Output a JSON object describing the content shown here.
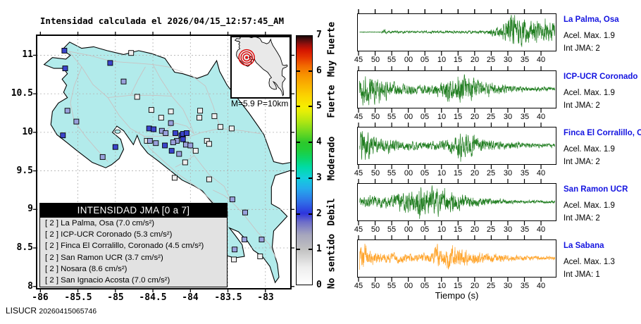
{
  "title": "Intensidad calculada el 2026/04/15_12:57:45_AM",
  "footer": {
    "agency": "LISUCR",
    "code": "20260415065746"
  },
  "map": {
    "x_ticks": [
      "-86",
      "-85.5",
      "-85",
      "-84.5",
      "-84",
      "-83.5",
      "-83"
    ],
    "y_ticks": [
      "11",
      "10.5",
      "10",
      "9.5",
      "9",
      "8.5",
      "8"
    ],
    "inset_label": "M=5.9 P=10km",
    "legend_header": "INTENSIDAD JMA [0 a 7]",
    "legend_entries": [
      {
        "intensity": "2",
        "name": "La Palma, Osa",
        "accel": "7.0",
        "unit": "cm/s²"
      },
      {
        "intensity": "2",
        "name": "ICP-UCR Coronado",
        "accel": "5.3",
        "unit": "cm/s²"
      },
      {
        "intensity": "2",
        "name": "Finca El Corralillo, Coronado",
        "accel": "4.5",
        "unit": "cm/s²"
      },
      {
        "intensity": "2",
        "name": "San Ramon UCR",
        "accel": "3.7",
        "unit": "cm/s²"
      },
      {
        "intensity": "2",
        "name": "Nosara",
        "accel": "8.6",
        "unit": "cm/s²"
      },
      {
        "intensity": "2",
        "name": "San Ignacio Acosta",
        "accel": "7.0",
        "unit": "cm/s²"
      }
    ]
  },
  "colorbar": {
    "tick_labels": [
      "0",
      "1",
      "2",
      "3",
      "4",
      "5",
      "6",
      "7"
    ],
    "category_labels": [
      {
        "text": "No sentido",
        "level": 0.68
      },
      {
        "text": "Debil",
        "level": 2.05
      },
      {
        "text": "Moderado",
        "level": 3.55
      },
      {
        "text": "Fuerte",
        "level": 5.15
      },
      {
        "text": "Muy Fuerte",
        "level": 6.6
      }
    ]
  },
  "waveforms": {
    "time_tick_labels": [
      "45",
      "50",
      "55",
      "00",
      "05",
      "10",
      "15",
      "20",
      "25",
      "30",
      "35",
      "40"
    ],
    "xlabel": "Tiempo (s)",
    "labels": {
      "acel": "Acel. Max.",
      "int": "Int JMA:"
    },
    "stations": [
      {
        "name": "La Palma, Osa",
        "acel_max": "1.9",
        "int_jma": "2",
        "color": "#1f7d1f"
      },
      {
        "name": "ICP-UCR Coronado",
        "acel_max": "1.9",
        "int_jma": "2",
        "color": "#1f7d1f"
      },
      {
        "name": "Finca El Corralillo, Coronado",
        "acel_max": "1.9",
        "int_jma": "2",
        "color": "#1f7d1f"
      },
      {
        "name": "San Ramon UCR",
        "acel_max": "1.9",
        "int_jma": "2",
        "color": "#1f7d1f"
      },
      {
        "name": "La Sabana",
        "acel_max": "1.3",
        "int_jma": "1",
        "color": "#ffa42b"
      }
    ]
  },
  "chart_data": [
    {
      "type": "scatter",
      "title": "Intensidad calculada el 2026/04/15_12:57:45_AM",
      "xlabel": "",
      "ylabel": "",
      "x_ticks": [
        -86,
        -85.5,
        -85,
        -84.5,
        -84,
        -83.5,
        -83
      ],
      "y_ticks": [
        11,
        10.5,
        10,
        9.5,
        9,
        8.5,
        8
      ],
      "xlim": [
        -86.05,
        -82.66
      ],
      "ylim": [
        7.97,
        11.26
      ],
      "grid": true,
      "legend_position": "bottom-left",
      "colorbar": {
        "range": [
          0,
          7
        ],
        "categories": [
          "No sentido",
          "Debil",
          "Moderado",
          "Fuerte",
          "Muy Fuerte"
        ]
      },
      "epicenter": {
        "lon": -85.2,
        "lat": 10.0,
        "magnitude": "M=5.9",
        "depth": "P=10km"
      },
      "points": [
        {
          "lon": -85.68,
          "lat": 11.06,
          "level": 2
        },
        {
          "lon": -85.67,
          "lat": 10.83,
          "level": 2
        },
        {
          "lon": -85.07,
          "lat": 10.9,
          "level": 2
        },
        {
          "lon": -84.79,
          "lat": 11.03,
          "level": 0
        },
        {
          "lon": -84.89,
          "lat": 10.66,
          "level": 1
        },
        {
          "lon": -84.71,
          "lat": 10.46,
          "level": 0
        },
        {
          "lon": -85.64,
          "lat": 10.28,
          "level": 1
        },
        {
          "lon": -85.52,
          "lat": 10.14,
          "level": 1
        },
        {
          "lon": -85.7,
          "lat": 9.96,
          "level": 2
        },
        {
          "lon": -85.0,
          "lat": 9.81,
          "level": 2
        },
        {
          "lon": -85.17,
          "lat": 9.68,
          "level": 1
        },
        {
          "lon": -84.52,
          "lat": 10.29,
          "level": 0
        },
        {
          "lon": -84.39,
          "lat": 10.19,
          "level": 0
        },
        {
          "lon": -84.26,
          "lat": 10.27,
          "level": 0
        },
        {
          "lon": -83.87,
          "lat": 10.28,
          "level": 0
        },
        {
          "lon": -83.68,
          "lat": 10.21,
          "level": 0
        },
        {
          "lon": -83.88,
          "lat": 10.19,
          "level": 0
        },
        {
          "lon": -84.55,
          "lat": 10.05,
          "level": 2
        },
        {
          "lon": -84.49,
          "lat": 10.04,
          "level": 2
        },
        {
          "lon": -84.38,
          "lat": 10.02,
          "level": 1
        },
        {
          "lon": -84.33,
          "lat": 9.99,
          "level": 1
        },
        {
          "lon": -84.26,
          "lat": 10.12,
          "level": 1
        },
        {
          "lon": -84.2,
          "lat": 9.99,
          "level": 2
        },
        {
          "lon": -84.12,
          "lat": 9.96,
          "level": 2
        },
        {
          "lon": -84.1,
          "lat": 9.98,
          "level": 2
        },
        {
          "lon": -84.05,
          "lat": 9.99,
          "level": 2
        },
        {
          "lon": -84.1,
          "lat": 9.91,
          "level": 2
        },
        {
          "lon": -84.06,
          "lat": 9.84,
          "level": 1
        },
        {
          "lon": -84.0,
          "lat": 9.83,
          "level": 1
        },
        {
          "lon": -84.18,
          "lat": 9.89,
          "level": 1
        },
        {
          "lon": -84.23,
          "lat": 9.87,
          "level": 1
        },
        {
          "lon": -84.34,
          "lat": 9.83,
          "level": 2
        },
        {
          "lon": -84.46,
          "lat": 9.86,
          "level": 1
        },
        {
          "lon": -84.58,
          "lat": 9.89,
          "level": 0
        },
        {
          "lon": -84.54,
          "lat": 9.89,
          "level": 1
        },
        {
          "lon": -84.25,
          "lat": 9.76,
          "level": 2
        },
        {
          "lon": -84.15,
          "lat": 9.72,
          "level": 1
        },
        {
          "lon": -83.93,
          "lat": 9.76,
          "level": 0
        },
        {
          "lon": -83.78,
          "lat": 9.89,
          "level": 0
        },
        {
          "lon": -83.75,
          "lat": 9.85,
          "level": 0
        },
        {
          "lon": -83.6,
          "lat": 10.07,
          "level": 0
        },
        {
          "lon": -83.45,
          "lat": 10.05,
          "level": 0
        },
        {
          "lon": -84.07,
          "lat": 9.61,
          "level": 0
        },
        {
          "lon": -84.21,
          "lat": 9.41,
          "level": 0
        },
        {
          "lon": -83.75,
          "lat": 9.39,
          "level": 0
        },
        {
          "lon": -83.44,
          "lat": 9.13,
          "level": 1
        },
        {
          "lon": -83.62,
          "lat": 8.94,
          "level": 2
        },
        {
          "lon": -83.54,
          "lat": 8.94,
          "level": 1
        },
        {
          "lon": -83.27,
          "lat": 8.96,
          "level": 1
        },
        {
          "lon": -83.55,
          "lat": 8.6,
          "level": 2
        },
        {
          "lon": -83.28,
          "lat": 8.61,
          "level": 1
        },
        {
          "lon": -83.41,
          "lat": 8.48,
          "level": 1
        },
        {
          "lon": -83.05,
          "lat": 8.61,
          "level": 1
        },
        {
          "lon": -83.42,
          "lat": 8.35,
          "level": 0
        },
        {
          "lon": -83.07,
          "lat": 8.39,
          "level": 0
        }
      ]
    },
    {
      "type": "line",
      "xlabel": "Tiempo (s)",
      "x_ticks": [
        "45",
        "50",
        "55",
        "00",
        "05",
        "10",
        "15",
        "20",
        "25",
        "30",
        "35",
        "40"
      ],
      "x_window_seconds": 60,
      "series": [
        {
          "name": "La Palma, Osa",
          "acel_max": 1.9,
          "int_jma": 2,
          "envelope_t_amp": [
            [
              0,
              0.02
            ],
            [
              6.5,
              0.02
            ],
            [
              7.3,
              0.25
            ],
            [
              8.2,
              0.08
            ],
            [
              14,
              0.07
            ],
            [
              30,
              0.07
            ],
            [
              38,
              0.09
            ],
            [
              40,
              0.18
            ],
            [
              42,
              0.3
            ],
            [
              44,
              0.55
            ],
            [
              46,
              1.0
            ],
            [
              47.5,
              0.75
            ],
            [
              49,
              0.9
            ],
            [
              51,
              0.6
            ],
            [
              53,
              0.7
            ],
            [
              55,
              0.55
            ],
            [
              57,
              0.6
            ],
            [
              59,
              0.5
            ]
          ]
        },
        {
          "name": "ICP-UCR Coronado",
          "acel_max": 1.9,
          "int_jma": 2,
          "envelope_t_amp": [
            [
              0,
              0.8
            ],
            [
              1.5,
              1.0
            ],
            [
              3,
              0.85
            ],
            [
              5,
              0.7
            ],
            [
              7,
              0.55
            ],
            [
              9,
              0.45
            ],
            [
              12,
              0.35
            ],
            [
              15,
              0.3
            ],
            [
              18,
              0.28
            ],
            [
              21,
              0.3
            ],
            [
              24,
              0.35
            ],
            [
              25.5,
              0.6
            ],
            [
              27,
              0.8
            ],
            [
              28.5,
              0.6
            ],
            [
              30,
              0.75
            ],
            [
              31.5,
              1.0
            ],
            [
              33,
              0.7
            ],
            [
              35,
              0.55
            ],
            [
              37,
              0.45
            ],
            [
              39,
              0.35
            ],
            [
              41,
              0.28
            ],
            [
              44,
              0.22
            ],
            [
              47,
              0.18
            ],
            [
              50,
              0.15
            ],
            [
              54,
              0.13
            ],
            [
              59,
              0.12
            ]
          ]
        },
        {
          "name": "Finca El Corralillo, Coronado",
          "acel_max": 1.9,
          "int_jma": 2,
          "envelope_t_amp": [
            [
              0,
              0.55
            ],
            [
              1,
              1.0
            ],
            [
              2.5,
              0.8
            ],
            [
              4,
              0.55
            ],
            [
              6,
              0.4
            ],
            [
              9,
              0.32
            ],
            [
              12,
              0.28
            ],
            [
              15,
              0.25
            ],
            [
              18,
              0.22
            ],
            [
              21,
              0.22
            ],
            [
              24,
              0.25
            ],
            [
              27,
              0.35
            ],
            [
              29,
              0.6
            ],
            [
              30.5,
              0.75
            ],
            [
              32,
              0.6
            ],
            [
              33.5,
              0.72
            ],
            [
              35,
              0.55
            ],
            [
              37,
              0.4
            ],
            [
              39,
              0.3
            ],
            [
              42,
              0.25
            ],
            [
              45,
              0.2
            ],
            [
              48,
              0.17
            ],
            [
              52,
              0.14
            ],
            [
              59,
              0.12
            ]
          ]
        },
        {
          "name": "San Ramon UCR",
          "acel_max": 1.9,
          "int_jma": 2,
          "envelope_t_amp": [
            [
              0,
              0.28
            ],
            [
              3,
              0.33
            ],
            [
              6,
              0.3
            ],
            [
              9,
              0.35
            ],
            [
              11,
              0.45
            ],
            [
              13,
              0.6
            ],
            [
              15,
              0.8
            ],
            [
              17,
              0.7
            ],
            [
              18.5,
              1.0
            ],
            [
              20,
              0.75
            ],
            [
              22,
              0.9
            ],
            [
              24,
              0.7
            ],
            [
              26,
              0.62
            ],
            [
              28,
              0.68
            ],
            [
              30,
              0.5
            ],
            [
              32,
              0.4
            ],
            [
              34,
              0.32
            ],
            [
              37,
              0.25
            ],
            [
              40,
              0.18
            ],
            [
              44,
              0.13
            ],
            [
              48,
              0.1
            ],
            [
              53,
              0.09
            ],
            [
              59,
              0.08
            ]
          ]
        },
        {
          "name": "La Sabana",
          "acel_max": 1.3,
          "int_jma": 1,
          "envelope_t_amp": [
            [
              0,
              0.95
            ],
            [
              1,
              1.0
            ],
            [
              2,
              0.65
            ],
            [
              3.5,
              0.45
            ],
            [
              5,
              0.35
            ],
            [
              8,
              0.3
            ],
            [
              12,
              0.27
            ],
            [
              16,
              0.25
            ],
            [
              20,
              0.28
            ],
            [
              22.5,
              0.4
            ],
            [
              23.2,
              0.9
            ],
            [
              24,
              0.45
            ],
            [
              25.5,
              0.5
            ],
            [
              26.5,
              0.75
            ],
            [
              27.5,
              0.5
            ],
            [
              28.3,
              1.0
            ],
            [
              29.5,
              0.55
            ],
            [
              31,
              0.5
            ],
            [
              33,
              0.45
            ],
            [
              35,
              0.38
            ],
            [
              38,
              0.3
            ],
            [
              41,
              0.25
            ],
            [
              44,
              0.2
            ],
            [
              48,
              0.16
            ],
            [
              52,
              0.13
            ],
            [
              59,
              0.11
            ]
          ]
        }
      ]
    }
  ]
}
